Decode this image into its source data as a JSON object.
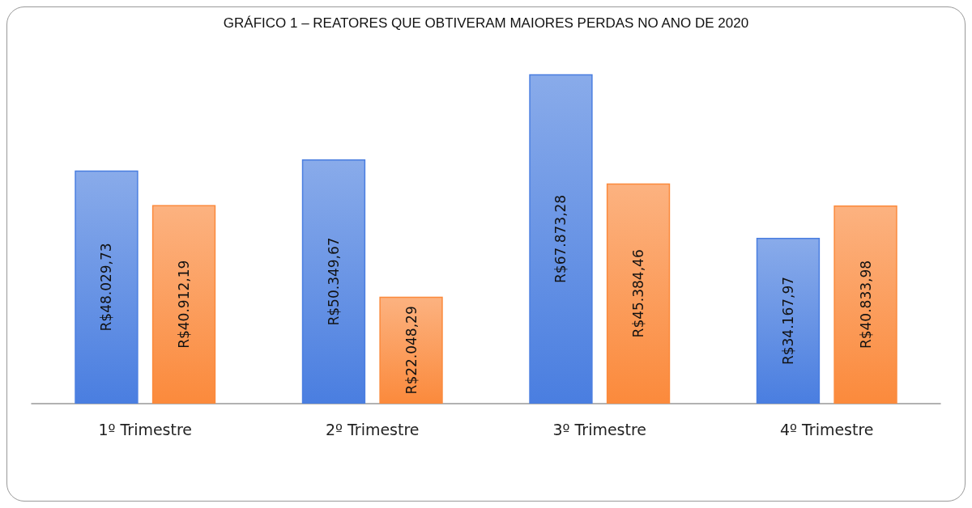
{
  "chart_data": {
    "type": "bar",
    "title": "GRÁFICO 1 – REATORES QUE OBTIVERAM MAIORES PERDAS NO ANO DE 2020",
    "categories": [
      "1º Trimestre",
      "2º Trimestre",
      "3º Trimestre",
      "4º Trimestre"
    ],
    "series": [
      {
        "color": "#4a7ee0",
        "values": [
          48029.73,
          50349.67,
          67873.28,
          34167.97
        ],
        "value_labels": [
          "R$48.029,73",
          "R$50.349,67",
          "R$67.873,28",
          "R$34.167,97"
        ]
      },
      {
        "color": "#fb8a3c",
        "values": [
          40912.19,
          22048.29,
          45384.46,
          40833.98
        ],
        "value_labels": [
          "R$40.912,19",
          "R$22.048,29",
          "R$45.384,46",
          "R$40.833,98"
        ]
      }
    ],
    "grid": false
  }
}
